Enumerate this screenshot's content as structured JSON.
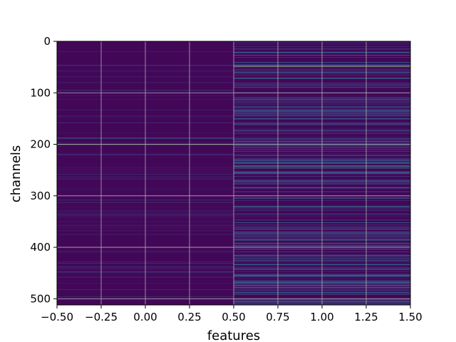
{
  "chart_data": {
    "type": "heatmap",
    "title": "",
    "xlabel": "features",
    "ylabel": "channels",
    "xlim": [
      -0.5,
      1.5
    ],
    "ylim": [
      512,
      0
    ],
    "x_ticks": [
      "−0.50",
      "−0.25",
      "0.00",
      "0.25",
      "0.50",
      "0.75",
      "1.00",
      "1.25",
      "1.50"
    ],
    "y_ticks": [
      "0",
      "100",
      "200",
      "300",
      "400",
      "500"
    ],
    "x_tick_values": [
      -0.5,
      -0.25,
      0,
      0.25,
      0.5,
      0.75,
      1.0,
      1.25,
      1.5
    ],
    "y_tick_values": [
      0,
      100,
      200,
      300,
      400,
      500
    ],
    "grid": true,
    "colormap": "viridis",
    "columns": [
      0,
      1
    ],
    "rows": 512,
    "highlights": [
      {
        "column": 0,
        "channel": 188,
        "value": 0.45
      },
      {
        "column": 0,
        "channel": 200,
        "value": 0.75
      },
      {
        "column": 1,
        "channel": 48,
        "value": 1.0
      },
      {
        "column": 1,
        "channel": 100,
        "value": 0.55
      },
      {
        "column": 1,
        "channel": 242,
        "value": 0.6
      },
      {
        "column": 1,
        "channel": 246,
        "value": 0.55
      },
      {
        "column": 1,
        "channel": 386,
        "value": 0.5
      },
      {
        "column": 1,
        "channel": 392,
        "value": 0.5
      },
      {
        "column": 1,
        "channel": 455,
        "value": 0.55
      },
      {
        "column": 1,
        "channel": 478,
        "value": 0.45
      }
    ]
  }
}
